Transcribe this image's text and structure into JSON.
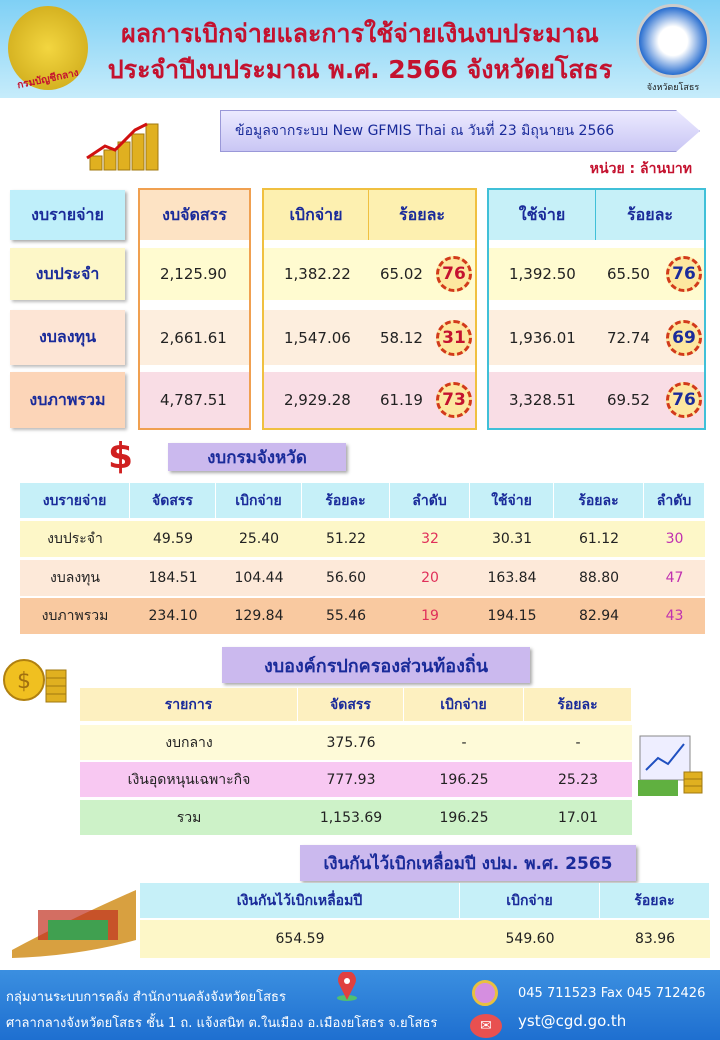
{
  "header": {
    "title_line1": "ผลการเบิกจ่ายและการใช้จ่ายเงินงบประมาณ",
    "title_line2": "ประจำปีงบประมาณ พ.ศ. 2566 จังหวัดยโสธร",
    "left_logo_text": "กรมบัญชีกลาง",
    "right_logo_caption": "จังหวัดยโสธร"
  },
  "banner": "ข้อมูลจากระบบ New GFMIS Thai ณ วันที่ 23 มิถุนายน 2566",
  "unit": "หน่วย : ล้านบาท",
  "summary": {
    "headers": [
      "งบรายจ่าย",
      "งบจัดสรร",
      "เบิกจ่าย",
      "ร้อยละ",
      "ใช้จ่าย",
      "ร้อยละ"
    ],
    "rows": [
      {
        "name": "งบประจำ",
        "alloc": "2,125.90",
        "disb": "1,382.22",
        "disb_pct": "65.02",
        "disb_rank": "76",
        "spend": "1,392.50",
        "spend_pct": "65.50",
        "spend_rank": "76"
      },
      {
        "name": "งบลงทุน",
        "alloc": "2,661.61",
        "disb": "1,547.06",
        "disb_pct": "58.12",
        "disb_rank": "31",
        "spend": "1,936.01",
        "spend_pct": "72.74",
        "spend_rank": "69"
      },
      {
        "name": "งบภาพรวม",
        "alloc": "4,787.51",
        "disb": "2,929.28",
        "disb_pct": "61.19",
        "disb_rank": "73",
        "spend": "3,328.51",
        "spend_pct": "69.52",
        "spend_rank": "76"
      }
    ]
  },
  "provincial": {
    "title": "งบกรมจังหวัด",
    "headers": [
      "งบรายจ่าย",
      "จัดสรร",
      "เบิกจ่าย",
      "ร้อยละ",
      "ลำดับ",
      "ใช้จ่าย",
      "ร้อยละ",
      "ลำดับ"
    ],
    "rows": [
      [
        "งบประจำ",
        "49.59",
        "25.40",
        "51.22",
        "32",
        "30.31",
        "61.12",
        "30"
      ],
      [
        "งบลงทุน",
        "184.51",
        "104.44",
        "56.60",
        "20",
        "163.84",
        "88.80",
        "47"
      ],
      [
        "งบภาพรวม",
        "234.10",
        "129.84",
        "55.46",
        "19",
        "194.15",
        "82.94",
        "43"
      ]
    ]
  },
  "local": {
    "title": "งบองค์กรปกครองส่วนท้องถิ่น",
    "headers": [
      "รายการ",
      "จัดสรร",
      "เบิกจ่าย",
      "ร้อยละ"
    ],
    "rows": [
      [
        "งบกลาง",
        "375.76",
        "-",
        "-"
      ],
      [
        "เงินอุดหนุนเฉพาะกิจ",
        "777.93",
        "196.25",
        "25.23"
      ],
      [
        "รวม",
        "1,153.69",
        "196.25",
        "17.01"
      ]
    ]
  },
  "carryover": {
    "title": "เงินกันไว้เบิกเหลื่อมปี งปม. พ.ศ. 2565",
    "headers": [
      "เงินกันไว้เบิกเหลื่อมปี",
      "เบิกจ่าย",
      "ร้อยละ"
    ],
    "row": [
      "654.59",
      "549.60",
      "83.96"
    ]
  },
  "footer": {
    "line1": "กลุ่มงานระบบการคลัง สำนักงานคลังจังหวัดยโสธร",
    "line2": "ศาลากลางจังหวัดยโสธร ชั้น 1 ถ. แจ้งสนิท ต.ในเมือง อ.เมืองยโสธร จ.ยโสธร",
    "phone": "045 711523  Fax 045 712426",
    "email": "yst@cgd.go.th"
  }
}
